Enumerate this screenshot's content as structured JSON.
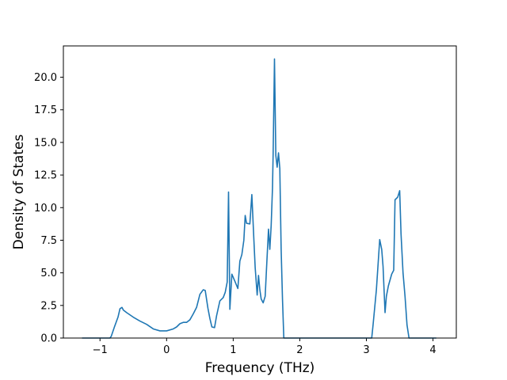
{
  "chart_data": {
    "type": "line",
    "title": "",
    "xlabel": "Frequency (THz)",
    "ylabel": "Density of States",
    "xlim": [
      -1.55,
      4.35
    ],
    "ylim": [
      0,
      22.4
    ],
    "xticks": [
      -1,
      0,
      1,
      2,
      3,
      4
    ],
    "xtick_labels": [
      "−1",
      "0",
      "1",
      "2",
      "3",
      "4"
    ],
    "yticks": [
      0,
      2.5,
      5,
      7.5,
      10,
      12.5,
      15,
      17.5,
      20
    ],
    "ytick_labels": [
      "0.0",
      "2.5",
      "5.0",
      "7.5",
      "10.0",
      "12.5",
      "15.0",
      "17.5",
      "20.0"
    ],
    "grid": false,
    "line_color": "#1f77b4",
    "series": [
      {
        "x": [
          -1.27,
          -0.85,
          -0.83,
          -0.78,
          -0.73,
          -0.7,
          -0.67,
          -0.65,
          -0.6,
          -0.5,
          -0.4,
          -0.3,
          -0.2,
          -0.1,
          0.0,
          0.1,
          0.15,
          0.2,
          0.25,
          0.3,
          0.35,
          0.4,
          0.45,
          0.5,
          0.55,
          0.58,
          0.62,
          0.65,
          0.68,
          0.72,
          0.75,
          0.8,
          0.85,
          0.88,
          0.91,
          0.93,
          0.95,
          0.98,
          1.03,
          1.07,
          1.1,
          1.13,
          1.16,
          1.18,
          1.2,
          1.25,
          1.28,
          1.31,
          1.33,
          1.36,
          1.38,
          1.4,
          1.42,
          1.45,
          1.48,
          1.5,
          1.53,
          1.55,
          1.57,
          1.59,
          1.6,
          1.62,
          1.64,
          1.66,
          1.68,
          1.7,
          1.72,
          1.74,
          1.76,
          1.79,
          1.82,
          3.08,
          3.1,
          3.15,
          3.2,
          3.23,
          3.25,
          3.28,
          3.3,
          3.33,
          3.38,
          3.41,
          3.43,
          3.47,
          3.5,
          3.52,
          3.55,
          3.58,
          3.61,
          3.64,
          4.05
        ],
        "y": [
          0,
          0,
          0.15,
          0.9,
          1.6,
          2.25,
          2.35,
          2.15,
          1.95,
          1.6,
          1.3,
          1.05,
          0.7,
          0.55,
          0.55,
          0.7,
          0.85,
          1.1,
          1.2,
          1.2,
          1.4,
          1.85,
          2.35,
          3.35,
          3.7,
          3.65,
          2.3,
          1.5,
          0.85,
          0.8,
          1.7,
          2.85,
          3.1,
          3.5,
          4.3,
          11.2,
          2.2,
          4.9,
          4.3,
          3.8,
          5.9,
          6.4,
          7.5,
          9.4,
          8.8,
          8.75,
          11.0,
          7.6,
          5.4,
          3.3,
          4.8,
          3.7,
          3.0,
          2.7,
          3.2,
          5.3,
          8.35,
          6.8,
          8.6,
          11.5,
          14.2,
          21.4,
          14.0,
          13.1,
          14.2,
          13.0,
          6.8,
          3.0,
          0,
          0,
          0,
          0,
          1.0,
          3.7,
          7.55,
          6.8,
          5.5,
          1.95,
          3.2,
          4.0,
          4.9,
          5.2,
          10.6,
          10.8,
          11.3,
          8.0,
          5.0,
          3.2,
          1.0,
          0,
          0
        ]
      }
    ]
  }
}
